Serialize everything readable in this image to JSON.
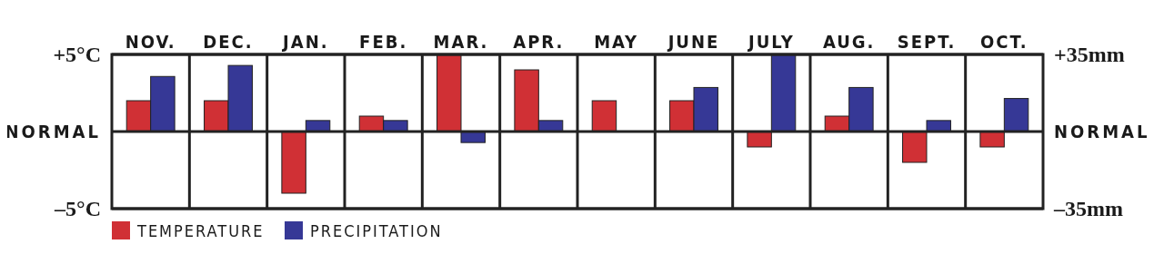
{
  "chart_data": {
    "type": "bar",
    "categories": [
      "NOV.",
      "DEC.",
      "JAN.",
      "FEB.",
      "MAR.",
      "APR.",
      "MAY",
      "JUNE",
      "JULY",
      "AUG.",
      "SEPT.",
      "OCT."
    ],
    "series": [
      {
        "name": "TEMPERATURE",
        "color": "#d03035",
        "values": [
          2,
          2,
          -4,
          1,
          5,
          4,
          2,
          2,
          -1,
          1,
          -2,
          -1
        ]
      },
      {
        "name": "PRECIPITATION",
        "color": "#363896",
        "axis": "y2",
        "values": [
          25,
          30,
          5,
          5,
          -5,
          5,
          0,
          20,
          35,
          20,
          5,
          15
        ]
      }
    ],
    "ylim": [
      -5,
      5
    ],
    "yticks": [
      {
        "value": 5,
        "label": "+5°C"
      },
      {
        "value": 0,
        "label": "NORMAL"
      },
      {
        "value": -5,
        "label": "–5°C"
      }
    ],
    "y2lim": [
      -35,
      35
    ],
    "y2ticks": [
      {
        "value": 35,
        "label": "+35mm"
      },
      {
        "value": 0,
        "label": "NORMAL"
      },
      {
        "value": -35,
        "label": "–35mm"
      }
    ],
    "grid": true,
    "legend": "bottom left"
  }
}
